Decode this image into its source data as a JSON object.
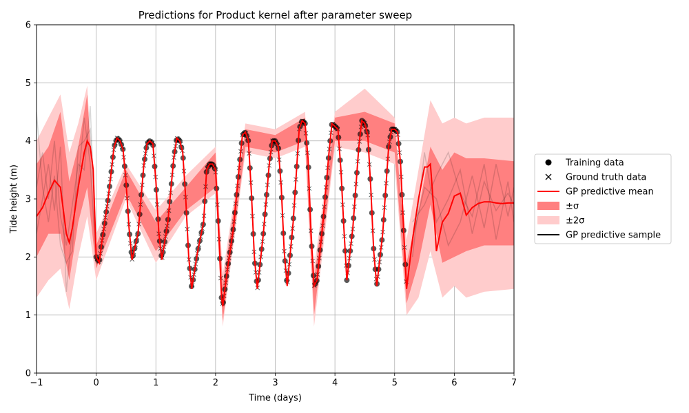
{
  "chart_data": {
    "type": "line",
    "title": "Predictions for Product kernel after parameter sweep",
    "xlabel": "Time (days)",
    "ylabel": "Tide height (m)",
    "xlim": [
      -1,
      7
    ],
    "ylim": [
      0,
      6
    ],
    "x_ticks": [
      "−1",
      "0",
      "1",
      "2",
      "3",
      "4",
      "5",
      "6",
      "7"
    ],
    "y_ticks": [
      "0",
      "1",
      "2",
      "3",
      "4",
      "5",
      "6"
    ],
    "grid": true,
    "legend_position": "outside-right",
    "legend": [
      {
        "label": "Training data",
        "marker": "circle",
        "color": "#000000"
      },
      {
        "label": "Ground truth data",
        "marker": "x",
        "color": "#000000"
      },
      {
        "label": "GP predictive mean",
        "marker": "line",
        "color": "#ff0000"
      },
      {
        "label": "±σ",
        "marker": "patch",
        "color": "#ff8080"
      },
      {
        "label": "±2σ",
        "marker": "patch",
        "color": "#ffcccc"
      },
      {
        "label": "GP predictive sample",
        "marker": "line",
        "color": "#000000"
      }
    ],
    "colors": {
      "mean": "#ff0000",
      "band1": "#ff8080",
      "band2": "#ffcccc",
      "data": "#000000"
    },
    "series": [
      {
        "name": "GP predictive mean",
        "x": [
          -1.0,
          -0.9,
          -0.8,
          -0.7,
          -0.6,
          -0.5,
          -0.45,
          -0.4,
          -0.3,
          -0.2,
          -0.15,
          -0.1,
          -0.05,
          0.0,
          0.05,
          0.1,
          0.2,
          0.3,
          0.35,
          0.4,
          0.45,
          0.5,
          0.55,
          0.6,
          0.7,
          0.8,
          0.85,
          0.9,
          0.95,
          1.0,
          1.05,
          1.1,
          1.2,
          1.3,
          1.35,
          1.4,
          1.45,
          1.5,
          1.55,
          1.6,
          1.7,
          1.8,
          1.85,
          1.9,
          1.95,
          2.0,
          2.05,
          2.1,
          2.12,
          2.2,
          2.3,
          2.4,
          2.45,
          2.5,
          2.55,
          2.6,
          2.65,
          2.7,
          2.8,
          2.9,
          2.95,
          3.0,
          3.05,
          3.1,
          3.15,
          3.2,
          3.3,
          3.4,
          3.45,
          3.5,
          3.55,
          3.6,
          3.65,
          3.7,
          3.8,
          3.9,
          3.95,
          4.0,
          4.05,
          4.1,
          4.15,
          4.2,
          4.3,
          4.4,
          4.45,
          4.5,
          4.55,
          4.6,
          4.65,
          4.7,
          4.8,
          4.9,
          4.95,
          5.0,
          5.05,
          5.1,
          5.15,
          5.2,
          5.3,
          5.4,
          5.5,
          5.55,
          5.6,
          5.65,
          5.7,
          5.8,
          5.9,
          6.0,
          6.1,
          6.2,
          6.3,
          6.4,
          6.5,
          6.6,
          6.7,
          6.8,
          6.9,
          7.0
        ],
        "y": [
          2.7,
          2.85,
          3.1,
          3.32,
          3.2,
          2.4,
          2.25,
          2.5,
          3.2,
          3.8,
          4.0,
          3.9,
          3.5,
          2.0,
          1.9,
          2.3,
          3.0,
          3.9,
          4.05,
          4.0,
          3.85,
          3.3,
          2.5,
          1.95,
          2.4,
          3.6,
          3.95,
          4.0,
          3.95,
          3.3,
          2.4,
          1.95,
          2.6,
          3.7,
          4.05,
          4.0,
          3.8,
          3.0,
          2.0,
          1.45,
          2.1,
          2.6,
          3.5,
          3.6,
          3.6,
          3.5,
          2.5,
          1.3,
          1.15,
          1.8,
          2.5,
          3.6,
          4.1,
          4.15,
          4.0,
          3.1,
          2.0,
          1.45,
          2.4,
          3.6,
          4.0,
          4.0,
          3.9,
          3.2,
          2.1,
          1.5,
          2.6,
          4.2,
          4.35,
          4.3,
          3.7,
          2.4,
          1.5,
          1.6,
          2.6,
          3.8,
          4.3,
          4.25,
          4.2,
          3.5,
          2.5,
          1.6,
          2.5,
          3.9,
          4.35,
          4.3,
          4.1,
          3.2,
          2.1,
          1.5,
          2.4,
          3.9,
          4.2,
          4.2,
          4.15,
          3.6,
          2.5,
          1.45,
          2.3,
          3.0,
          3.55,
          3.55,
          3.6,
          2.9,
          2.1,
          2.6,
          2.75,
          3.05,
          3.1,
          2.72,
          2.85,
          2.92,
          2.95,
          2.95,
          2.93,
          2.92,
          2.93,
          2.93
        ]
      },
      {
        "name": "±σ",
        "x": [
          -1.0,
          -0.8,
          -0.6,
          -0.45,
          -0.3,
          -0.15,
          0.0,
          0.5,
          1.0,
          1.5,
          2.0,
          2.12,
          2.5,
          3.0,
          3.5,
          3.65,
          4.0,
          4.5,
          5.0,
          5.2,
          5.4,
          5.6,
          5.8,
          6.0,
          6.2,
          6.5,
          7.0
        ],
        "upper": [
          3.6,
          3.9,
          4.5,
          3.3,
          3.9,
          4.8,
          2.2,
          3.5,
          2.6,
          3.2,
          3.8,
          1.5,
          4.2,
          4.1,
          4.4,
          1.6,
          4.4,
          4.5,
          4.3,
          1.9,
          2.8,
          3.9,
          3.5,
          3.8,
          3.7,
          3.7,
          3.65
        ],
        "lower": [
          2.0,
          2.4,
          2.4,
          1.6,
          2.6,
          3.2,
          1.8,
          3.1,
          2.1,
          2.8,
          3.2,
          0.9,
          3.9,
          3.8,
          4.0,
          1.0,
          4.0,
          4.0,
          3.8,
          1.2,
          1.9,
          2.9,
          1.9,
          2.0,
          2.1,
          2.2,
          2.2
        ]
      },
      {
        "name": "±2σ",
        "x": [
          -1.0,
          -0.8,
          -0.6,
          -0.45,
          -0.3,
          -0.15,
          0.0,
          0.5,
          1.0,
          1.5,
          2.0,
          2.12,
          2.5,
          3.0,
          3.5,
          3.65,
          4.0,
          4.5,
          5.0,
          5.2,
          5.4,
          5.6,
          5.8,
          6.0,
          6.2,
          6.5,
          7.0
        ],
        "upper": [
          4.0,
          4.4,
          4.8,
          3.8,
          4.3,
          4.95,
          2.4,
          3.6,
          2.8,
          3.4,
          3.9,
          1.7,
          4.3,
          4.2,
          4.5,
          1.8,
          4.5,
          4.9,
          4.4,
          2.3,
          3.5,
          4.7,
          4.3,
          4.4,
          4.3,
          4.4,
          4.4
        ],
        "lower": [
          1.3,
          1.6,
          1.8,
          1.1,
          2.0,
          2.7,
          1.6,
          3.0,
          1.9,
          2.7,
          3.1,
          0.8,
          3.8,
          3.7,
          3.9,
          0.8,
          3.9,
          3.8,
          3.6,
          1.0,
          1.3,
          2.1,
          1.3,
          1.5,
          1.3,
          1.4,
          1.45
        ]
      },
      {
        "name": "GP predictive sample",
        "samples": [
          {
            "x": [
              -1.0,
              -0.9,
              -0.8,
              -0.7,
              -0.6,
              -0.5,
              -0.4,
              -0.3,
              -0.2,
              -0.1,
              0.0
            ],
            "y": [
              3.2,
              3.8,
              3.0,
              4.0,
              2.7,
              2.2,
              2.9,
              3.6,
              3.5,
              4.6,
              2.1
            ]
          },
          {
            "x": [
              -1.0,
              -0.9,
              -0.8,
              -0.7,
              -0.6,
              -0.5,
              -0.4,
              -0.3,
              -0.2,
              -0.1,
              0.0
            ],
            "y": [
              2.4,
              3.0,
              3.6,
              2.8,
              3.9,
              1.4,
              2.5,
              3.3,
              4.4,
              3.6,
              1.9
            ]
          },
          {
            "x": [
              -1.0,
              -0.9,
              -0.8,
              -0.7,
              -0.6,
              -0.5,
              -0.4,
              -0.3,
              -0.2,
              -0.1,
              0.0
            ],
            "y": [
              4.5,
              3.2,
              2.6,
              3.4,
              2.2,
              1.9,
              2.1,
              3.9,
              4.0,
              4.2,
              2.3
            ]
          },
          {
            "x": [
              5.3,
              5.5,
              5.7,
              5.9,
              6.1,
              6.3,
              6.5,
              6.7,
              6.9,
              7.0
            ],
            "y": [
              2.0,
              3.8,
              2.6,
              3.0,
              3.5,
              2.4,
              3.3,
              2.8,
              3.1,
              2.9
            ]
          },
          {
            "x": [
              5.3,
              5.5,
              5.7,
              5.9,
              6.1,
              6.3,
              6.5,
              6.7,
              6.9,
              7.0
            ],
            "y": [
              2.3,
              3.2,
              3.0,
              2.2,
              2.6,
              3.4,
              2.5,
              3.6,
              2.7,
              3.2
            ]
          },
          {
            "x": [
              5.3,
              5.5,
              5.7,
              5.9,
              6.1,
              6.3,
              6.5,
              6.7,
              6.9,
              7.0
            ],
            "y": [
              2.6,
              2.9,
              3.4,
              3.8,
              3.1,
              2.7,
              3.6,
              2.3,
              3.3,
              2.6
            ]
          }
        ]
      }
    ]
  }
}
